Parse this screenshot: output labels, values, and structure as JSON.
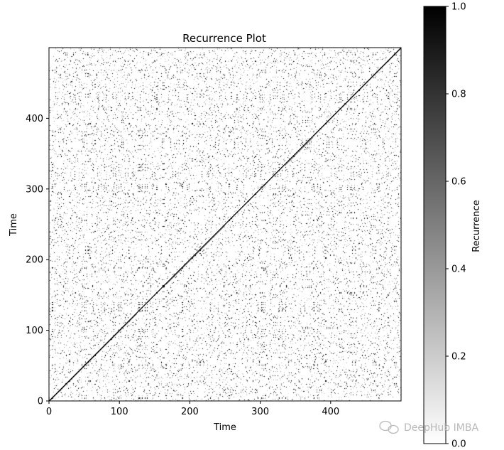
{
  "chart_data": {
    "type": "heatmap",
    "title": "Recurrence Plot",
    "xlabel": "Time",
    "ylabel": "Time",
    "xlim": [
      0,
      500
    ],
    "ylim": [
      0,
      500
    ],
    "x_ticks": [
      0,
      100,
      200,
      300,
      400
    ],
    "y_ticks": [
      0,
      100,
      200,
      300,
      400
    ],
    "colormap": "binary",
    "value_range": [
      0.0,
      1.0
    ],
    "colorbar": {
      "label": "Recurrence",
      "ticks": [
        "0.0",
        "0.2",
        "0.4",
        "0.6",
        "0.8",
        "1.0"
      ]
    }
  },
  "watermark": "DeepHub IMBA",
  "watermark_icon": "wechat-icon"
}
